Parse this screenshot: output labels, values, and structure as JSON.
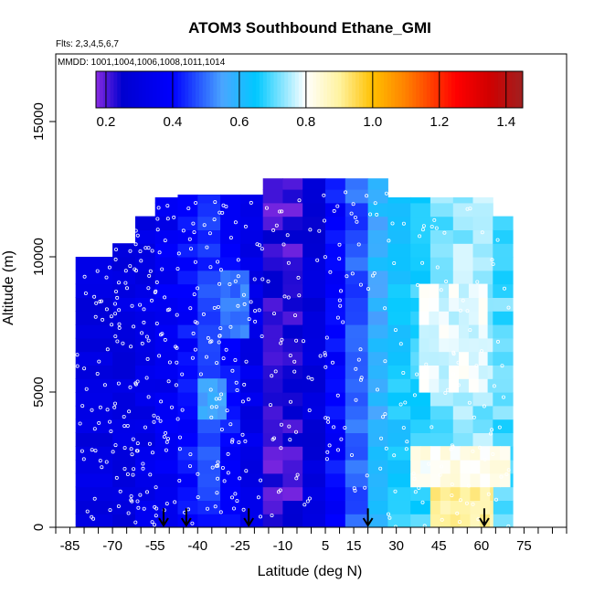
{
  "chart_data": {
    "type": "heatmap",
    "title": "ATOM3 Southbound Ethane_GMI",
    "subtitle_flights": "Flts: 2,3,4,5,6,7",
    "subtitle_dates": "MMDD: 1001,1004,1006,1008,1011,1014",
    "xlabel": "Latitude (deg N)",
    "ylabel": "Altitude (m)",
    "xlim": [
      -90,
      90
    ],
    "ylim": [
      0,
      17500
    ],
    "x_ticks": [
      -85,
      -70,
      -55,
      -40,
      -25,
      -10,
      5,
      15,
      30,
      45,
      60,
      75
    ],
    "x_minor_ticks": [
      -90,
      -80,
      -75,
      -65,
      -60,
      -50,
      -45,
      -35,
      -30,
      -20,
      -15,
      -5,
      0,
      10,
      20,
      25,
      35,
      40,
      50,
      55,
      65,
      70,
      80,
      85,
      90
    ],
    "y_ticks": [
      0,
      5000,
      10000,
      15000
    ],
    "colorbar": {
      "min": 0.17,
      "max": 1.45,
      "ticks": [
        0.2,
        0.4,
        0.6,
        0.8,
        1.0,
        1.2,
        1.4
      ],
      "tick_labels": [
        "0.2",
        "0.4",
        "0.6",
        "0.8",
        "1.0",
        "1.2",
        "1.4"
      ],
      "gradient": [
        {
          "v": 0.17,
          "color": "#8a2be2"
        },
        {
          "v": 0.25,
          "color": "#0000d0"
        },
        {
          "v": 0.4,
          "color": "#0000ff"
        },
        {
          "v": 0.55,
          "color": "#4aa6ff"
        },
        {
          "v": 0.65,
          "color": "#00c8ff"
        },
        {
          "v": 0.8,
          "color": "#ffffff"
        },
        {
          "v": 0.9,
          "color": "#fff3a0"
        },
        {
          "v": 1.0,
          "color": "#ffc000"
        },
        {
          "v": 1.1,
          "color": "#ff8000"
        },
        {
          "v": 1.25,
          "color": "#ff0000"
        },
        {
          "v": 1.35,
          "color": "#d00000"
        },
        {
          "v": 1.45,
          "color": "#a02020"
        }
      ]
    },
    "columns": [
      {
        "lat0": -83,
        "lat1": -70,
        "top": 10000,
        "value": 0.3
      },
      {
        "lat0": -70,
        "lat1": -62,
        "top": 10500,
        "value": 0.3
      },
      {
        "lat0": -62,
        "lat1": -55,
        "top": 11500,
        "value": 0.33
      },
      {
        "lat0": -55,
        "lat1": -47,
        "top": 12200,
        "value": 0.36
      },
      {
        "lat0": -47,
        "lat1": -40,
        "top": 12300,
        "value": 0.4
      },
      {
        "lat0": -40,
        "lat1": -32,
        "top": 12300,
        "value": 0.45
      },
      {
        "lat0": -32,
        "lat1": -25,
        "top": 12300,
        "value": 0.4
      },
      {
        "lat0": -25,
        "lat1": -17,
        "top": 12300,
        "value": 0.32
      },
      {
        "lat0": -17,
        "lat1": -10,
        "top": 12900,
        "value": 0.22
      },
      {
        "lat0": -10,
        "lat1": -3,
        "top": 12900,
        "value": 0.22
      },
      {
        "lat0": -3,
        "lat1": 5,
        "top": 12900,
        "value": 0.28
      },
      {
        "lat0": 5,
        "lat1": 12,
        "top": 12900,
        "value": 0.4
      },
      {
        "lat0": 12,
        "lat1": 20,
        "top": 12900,
        "value": 0.48
      },
      {
        "lat0": 20,
        "lat1": 27,
        "top": 12900,
        "value": 0.58
      },
      {
        "lat0": 27,
        "lat1": 35,
        "top": 12200,
        "value": 0.65
      },
      {
        "lat0": 35,
        "lat1": 42,
        "top": 12200,
        "value": 0.68
      },
      {
        "lat0": 42,
        "lat1": 50,
        "top": 12200,
        "value": 0.72
      },
      {
        "lat0": 50,
        "lat1": 57,
        "top": 12200,
        "value": 0.74
      },
      {
        "lat0": 57,
        "lat1": 64,
        "top": 12200,
        "value": 0.74
      },
      {
        "lat0": 64,
        "lat1": 71,
        "top": 11500,
        "value": 0.7
      }
    ],
    "patches": [
      {
        "lat0": 42,
        "lat1": 64,
        "alt0": 0,
        "alt1": 1500,
        "value": 0.9
      },
      {
        "lat0": 35,
        "lat1": 70,
        "alt0": 1500,
        "alt1": 3000,
        "value": 0.82
      },
      {
        "lat0": 38,
        "lat1": 62,
        "alt0": 5000,
        "alt1": 9000,
        "value": 0.78
      },
      {
        "lat0": -40,
        "lat1": -30,
        "alt0": 4000,
        "alt1": 5500,
        "value": 0.55
      },
      {
        "lat0": -32,
        "lat1": -22,
        "alt0": 7000,
        "alt1": 9500,
        "value": 0.5
      }
    ],
    "flight_markers_lat": [
      -52,
      -44,
      -22,
      20,
      61
    ],
    "sample_points": {
      "count": 520,
      "style": "open white circles"
    }
  }
}
